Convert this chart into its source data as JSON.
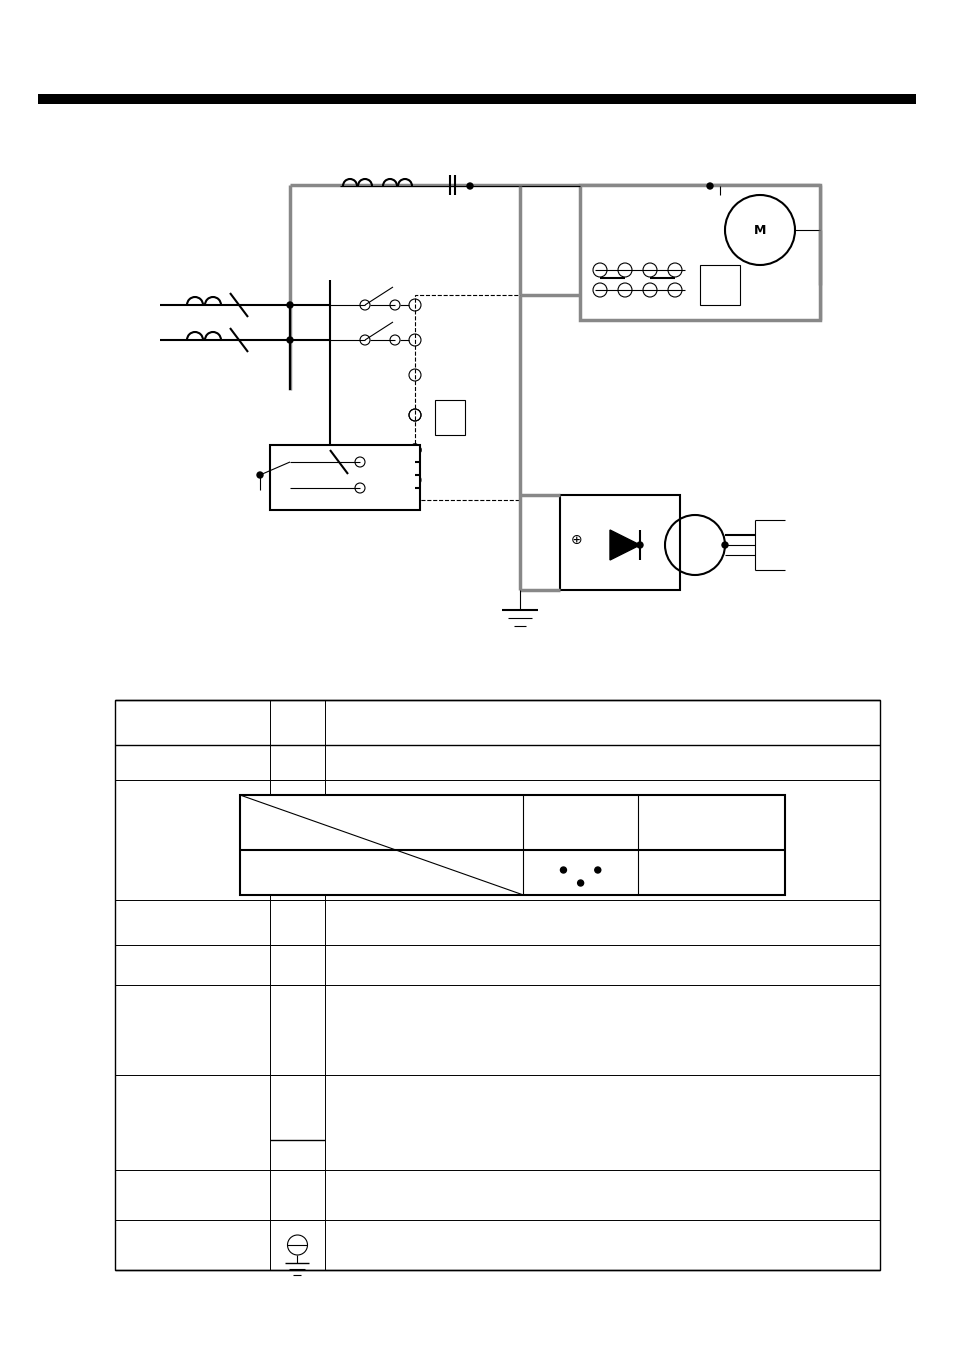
{
  "bg_color": "#ffffff",
  "page_width": 9.54,
  "page_height": 13.51,
  "black": "#000000",
  "gray": "#888888",
  "lw": 0.8,
  "lw2": 1.5,
  "lw3": 2.5
}
